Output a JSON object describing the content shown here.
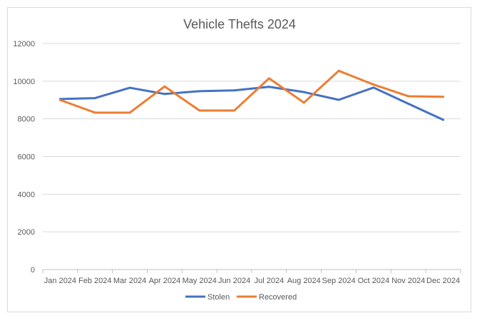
{
  "chart_data": {
    "type": "line",
    "title": "Vehicle Thefts 2024",
    "xlabel": "",
    "ylabel": "",
    "categories": [
      "Jan 2024",
      "Feb 2024",
      "Mar 2024",
      "Apr 2024",
      "May 2024",
      "Jun 2024",
      "Jul 2024",
      "Aug 2024",
      "Sep 2024",
      "Oct 2024",
      "Nov 2024",
      "Dec 2024"
    ],
    "ylim": [
      0,
      12000
    ],
    "yticks": [
      0,
      2000,
      4000,
      6000,
      8000,
      10000,
      12000
    ],
    "grid": true,
    "legend_position": "bottom",
    "series": [
      {
        "name": "Stolen",
        "color": "#4472c4",
        "values": [
          9050,
          9100,
          9650,
          9320,
          9470,
          9510,
          9700,
          9420,
          9010,
          9660,
          8800,
          7950
        ]
      },
      {
        "name": "Recovered",
        "color": "#ed7d31",
        "values": [
          9000,
          8330,
          8330,
          9720,
          8440,
          8440,
          10150,
          8860,
          10550,
          9820,
          9200,
          9170
        ]
      }
    ]
  }
}
